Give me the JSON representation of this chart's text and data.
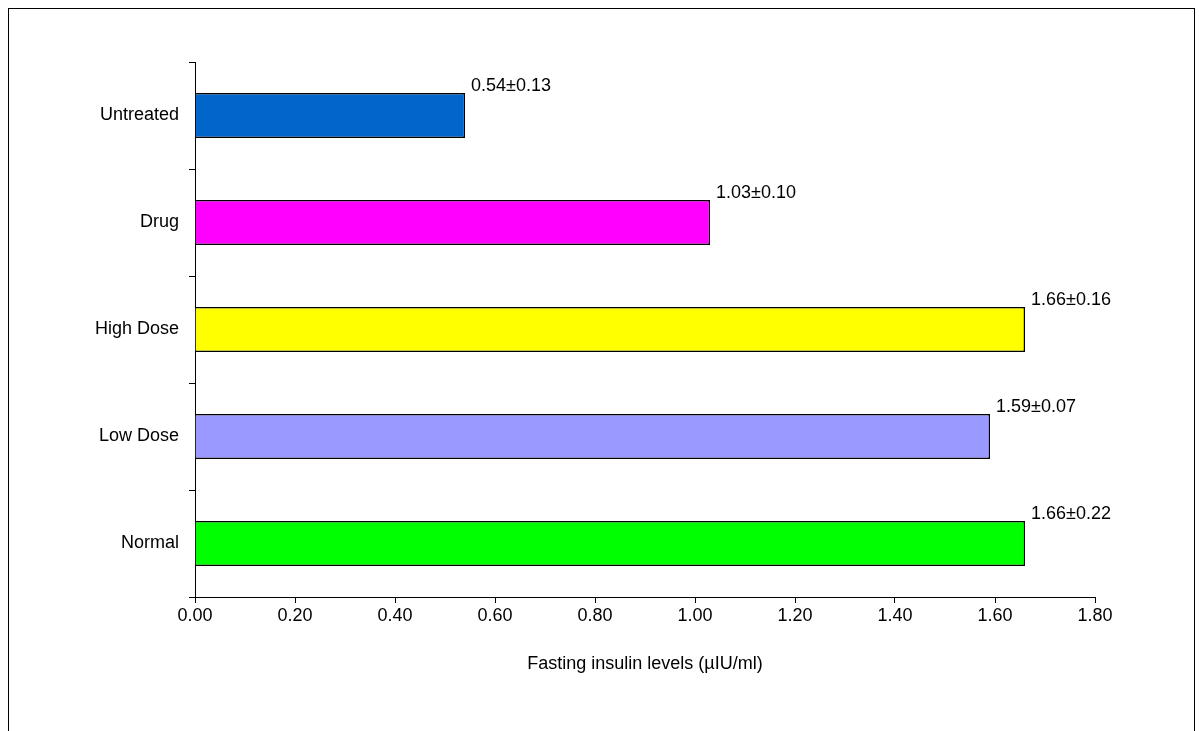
{
  "chart_data": {
    "type": "bar",
    "orientation": "horizontal",
    "categories": [
      "Untreated",
      "Drug",
      "High Dose",
      "Low Dose",
      "Normal"
    ],
    "values": [
      0.54,
      1.03,
      1.66,
      1.59,
      1.66
    ],
    "colors": [
      "#0066cc",
      "#ff00ff",
      "#ffff00",
      "#9999ff",
      "#00ff00"
    ],
    "value_labels": [
      "0.54±0.13",
      "1.03±0.10",
      "1.66±0.16",
      "1.59±0.07",
      "1.66±0.22"
    ],
    "xlabel": "Fasting insulin levels (µIU/ml)",
    "xlim": [
      0,
      1.8
    ],
    "xticks": [
      {
        "value": 0,
        "label": "0.00"
      },
      {
        "value": 0.2,
        "label": "0.20"
      },
      {
        "value": 0.4,
        "label": "0.40"
      },
      {
        "value": 0.6,
        "label": "0.60"
      },
      {
        "value": 0.8,
        "label": "0.80"
      },
      {
        "value": 1,
        "label": "1.00"
      },
      {
        "value": 1.2,
        "label": "1.20"
      },
      {
        "value": 1.4,
        "label": "1.40"
      },
      {
        "value": 1.6,
        "label": "1.60"
      },
      {
        "value": 1.8,
        "label": "1.80"
      }
    ],
    "grid": false
  }
}
